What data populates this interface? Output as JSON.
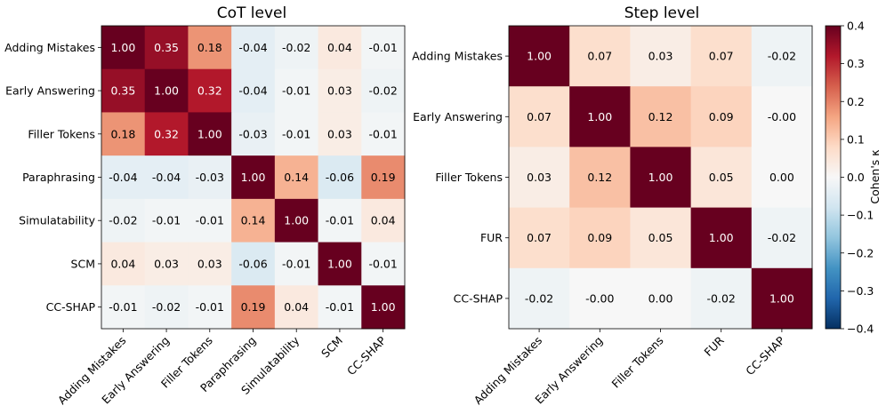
{
  "chart_data": [
    {
      "type": "heatmap",
      "title": "CoT level",
      "categories": [
        "Adding Mistakes",
        "Early Answering",
        "Filler Tokens",
        "Paraphrasing",
        "Simulatability",
        "SCM",
        "CC-SHAP"
      ],
      "values": [
        [
          1.0,
          0.35,
          0.18,
          -0.04,
          -0.02,
          0.04,
          -0.01
        ],
        [
          0.35,
          1.0,
          0.32,
          -0.04,
          -0.01,
          0.03,
          -0.02
        ],
        [
          0.18,
          0.32,
          1.0,
          -0.03,
          -0.01,
          0.03,
          -0.01
        ],
        [
          -0.04,
          -0.04,
          -0.03,
          1.0,
          0.14,
          -0.06,
          0.19
        ],
        [
          -0.02,
          -0.01,
          -0.01,
          0.14,
          1.0,
          -0.01,
          0.04
        ],
        [
          0.04,
          0.03,
          0.03,
          -0.06,
          -0.01,
          1.0,
          -0.01
        ],
        [
          -0.01,
          -0.02,
          -0.01,
          0.19,
          0.04,
          -0.01,
          1.0
        ]
      ],
      "value_labels": [
        [
          "1.00",
          "0.35",
          "0.18",
          "-0.04",
          "-0.02",
          "0.04",
          "-0.01"
        ],
        [
          "0.35",
          "1.00",
          "0.32",
          "-0.04",
          "-0.01",
          "0.03",
          "-0.02"
        ],
        [
          "0.18",
          "0.32",
          "1.00",
          "-0.03",
          "-0.01",
          "0.03",
          "-0.01"
        ],
        [
          "-0.04",
          "-0.04",
          "-0.03",
          "1.00",
          "0.14",
          "-0.06",
          "0.19"
        ],
        [
          "-0.02",
          "-0.01",
          "-0.01",
          "0.14",
          "1.00",
          "-0.01",
          "0.04"
        ],
        [
          "0.04",
          "0.03",
          "0.03",
          "-0.06",
          "-0.01",
          "1.00",
          "-0.01"
        ],
        [
          "-0.01",
          "-0.02",
          "-0.01",
          "0.19",
          "0.04",
          "-0.01",
          "1.00"
        ]
      ]
    },
    {
      "type": "heatmap",
      "title": "Step level",
      "categories": [
        "Adding Mistakes",
        "Early Answering",
        "Filler Tokens",
        "FUR",
        "CC-SHAP"
      ],
      "values": [
        [
          1.0,
          0.07,
          0.03,
          0.07,
          -0.02
        ],
        [
          0.07,
          1.0,
          0.12,
          0.09,
          -0.0
        ],
        [
          0.03,
          0.12,
          1.0,
          0.05,
          0.0
        ],
        [
          0.07,
          0.09,
          0.05,
          1.0,
          -0.02
        ],
        [
          -0.02,
          -0.0,
          0.0,
          -0.02,
          1.0
        ]
      ],
      "value_labels": [
        [
          "1.00",
          "0.07",
          "0.03",
          "0.07",
          "-0.02"
        ],
        [
          "0.07",
          "1.00",
          "0.12",
          "0.09",
          "-0.00"
        ],
        [
          "0.03",
          "0.12",
          "1.00",
          "0.05",
          "0.00"
        ],
        [
          "0.07",
          "0.09",
          "0.05",
          "1.00",
          "-0.02"
        ],
        [
          "-0.02",
          "-0.00",
          "0.00",
          "-0.02",
          "1.00"
        ]
      ]
    }
  ],
  "colorbar": {
    "label": "Cohen's κ",
    "colormap": "RdBu_r",
    "range": [
      -0.4,
      0.4
    ],
    "ticks": [
      -0.4,
      -0.3,
      -0.2,
      -0.1,
      0.0,
      0.1,
      0.2,
      0.3,
      0.4
    ],
    "tick_labels": [
      "−0.4",
      "−0.3",
      "−0.2",
      "−0.1",
      "0.0",
      "0.1",
      "0.2",
      "0.3",
      "0.4"
    ]
  }
}
